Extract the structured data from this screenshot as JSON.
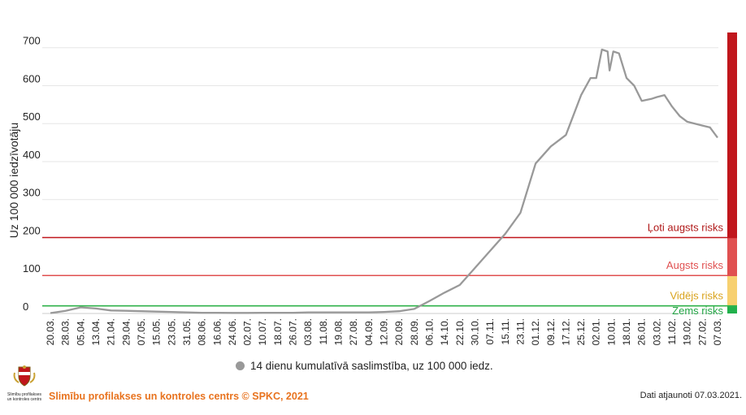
{
  "chart_data": {
    "type": "line",
    "ylabel": "Uz 100 000 iedzīvotāju",
    "ylim": [
      0,
      740
    ],
    "y_ticks": [
      0,
      100,
      200,
      300,
      400,
      500,
      600,
      700
    ],
    "x_tick_labels": [
      "20.03.",
      "28.03.",
      "05.04.",
      "13.04.",
      "21.04.",
      "29.04.",
      "07.05.",
      "15.05.",
      "23.05.",
      "31.05.",
      "08.06.",
      "16.06.",
      "24.06.",
      "02.07.",
      "10.07.",
      "18.07.",
      "26.07.",
      "03.08.",
      "11.08.",
      "19.08.",
      "27.08.",
      "04.09.",
      "12.09.",
      "20.09.",
      "28.09.",
      "06.10.",
      "14.10.",
      "22.10.",
      "30.10.",
      "07.11.",
      "15.11.",
      "23.11.",
      "01.12.",
      "09.12.",
      "17.12.",
      "25.12.",
      "02.01.",
      "10.01.",
      "18.01.",
      "26.01.",
      "03.02.",
      "11.02.",
      "19.02.",
      "27.02.",
      "07.03."
    ],
    "series": [
      {
        "name": "14 dienu kumulatīvā saslimstība, uz 100 000 iedz.",
        "color": "#999999",
        "points": [
          [
            "20.03.",
            1
          ],
          [
            "28.03.",
            7
          ],
          [
            "05.04.",
            16
          ],
          [
            "13.04.",
            13
          ],
          [
            "21.04.",
            8
          ],
          [
            "29.04.",
            7
          ],
          [
            "07.05.",
            6
          ],
          [
            "15.05.",
            5
          ],
          [
            "23.05.",
            4
          ],
          [
            "31.05.",
            3
          ],
          [
            "08.06.",
            2
          ],
          [
            "16.06.",
            2
          ],
          [
            "24.06.",
            1.5
          ],
          [
            "02.07.",
            1.5
          ],
          [
            "10.07.",
            2
          ],
          [
            "18.07.",
            2
          ],
          [
            "26.07.",
            2
          ],
          [
            "03.08.",
            3
          ],
          [
            "11.08.",
            3
          ],
          [
            "19.08.",
            3
          ],
          [
            "27.08.",
            3
          ],
          [
            "04.09.",
            3
          ],
          [
            "12.09.",
            4
          ],
          [
            "20.09.",
            6
          ],
          [
            "28.09.",
            12
          ],
          [
            "06.10.",
            33
          ],
          [
            "14.10.",
            55
          ],
          [
            "22.10.",
            75
          ],
          [
            "30.10.",
            120
          ],
          [
            "07.11.",
            165
          ],
          [
            "15.11.",
            210
          ],
          [
            "23.11.",
            265
          ],
          [
            "01.12.",
            395
          ],
          [
            "09.12.",
            440
          ],
          [
            "17.12.",
            470
          ],
          [
            "25.12.",
            575
          ],
          [
            "30.12.",
            620
          ],
          [
            "02.01.",
            620
          ],
          [
            "05.01.",
            695
          ],
          [
            "08.01.",
            690
          ],
          [
            "09.01.",
            640
          ],
          [
            "11.01.",
            690
          ],
          [
            "14.01.",
            685
          ],
          [
            "18.01.",
            620
          ],
          [
            "22.01.",
            600
          ],
          [
            "26.01.",
            560
          ],
          [
            "31.01.",
            565
          ],
          [
            "03.02.",
            570
          ],
          [
            "07.02.",
            575
          ],
          [
            "11.02.",
            545
          ],
          [
            "15.02.",
            520
          ],
          [
            "19.02.",
            505
          ],
          [
            "23.02.",
            500
          ],
          [
            "27.02.",
            495
          ],
          [
            "03.03.",
            490
          ],
          [
            "07.03.",
            463
          ]
        ]
      }
    ],
    "thresholds": [
      {
        "value": 200,
        "label": "Ļoti augsts risks",
        "color": "#c0161c"
      },
      {
        "value": 100,
        "label": "Augsts risks",
        "color": "#e05050"
      },
      {
        "value": 20,
        "label": "Vidējs risks",
        "color": "#f2c94c"
      },
      {
        "value": 0,
        "label": "Zems risks",
        "color": "#22b14c"
      }
    ],
    "risk_bands": [
      {
        "from": 200,
        "to": 740,
        "color": "#c0161c"
      },
      {
        "from": 100,
        "to": 200,
        "color": "#e05050"
      },
      {
        "from": 20,
        "to": 100,
        "color": "#f7d070"
      },
      {
        "from": 0,
        "to": 20,
        "color": "#22b14c"
      }
    ],
    "grid": true,
    "legend_position": "bottom"
  },
  "legend": {
    "label": "14 dienu kumulatīvā saslimstība, uz 100 000 iedz."
  },
  "footer": {
    "organization": "Slimību profilakses un kontroles centrs © SPKC, 2021",
    "updated": "Dati atjaunoti 07.03.2021.",
    "logo_text": "Slimību profilakses un kontroles centrs"
  }
}
